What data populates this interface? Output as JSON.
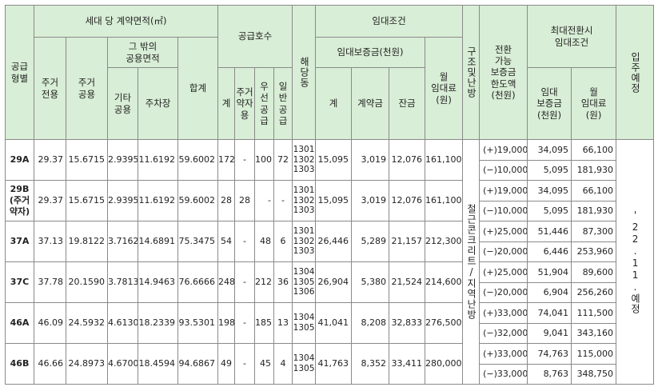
{
  "header": {
    "type": "공급\n형별",
    "area_group": "세대 당 계약면적(㎡)",
    "exclusive": "주거\n전용",
    "residential_common": "주거\n공용",
    "other_common_group": "그 밖의\n공용면적",
    "other_common": "기타\n공용",
    "parking": "주차장",
    "area_total": "합계",
    "supply_group": "공급호수",
    "supply_total": "계",
    "supply_vulnerable": "주거\n약자\n용",
    "supply_priority": "우\n선\n공\n급",
    "supply_general": "일\n반\n공\n급",
    "dong": "해당동",
    "lease_group": "임대조건",
    "deposit_group": "임대보증금(천원)",
    "deposit_total": "계",
    "deposit_contract": "계약금",
    "deposit_balance": "잔금",
    "monthly_rent": "월\n임대료\n(원)",
    "structure": "구조및난방",
    "conversion_limit": "전환\n가능\n보증금\n한도액\n(천원)",
    "max_conversion_group": "최대전환시\n임대조건",
    "max_deposit": "임대\n보증금\n(천원)",
    "max_rent": "월\n임대료\n(원)",
    "move_in": "입주예정"
  },
  "structure_value": "철근콘크리트/지역난방",
  "move_in_value": "'22.11.예정",
  "rows": [
    {
      "type": "29A",
      "exclusive": "29.37",
      "residential_common": "15.6715",
      "other_common": "2.9395",
      "parking": "11.6192",
      "area_total": "59.6002",
      "supply_total": "172",
      "supply_vulnerable": "-",
      "supply_priority": "100",
      "supply_general": "72",
      "dong": "1301\n1302\n1303",
      "deposit_total": "15,095",
      "deposit_contract": "3,019",
      "deposit_balance": "12,076",
      "monthly_rent": "161,100",
      "conv": [
        {
          "limit": "(+)19,000",
          "deposit": "34,095",
          "rent": "66,100"
        },
        {
          "limit": "(−)10,000",
          "deposit": "5,095",
          "rent": "181,930"
        }
      ]
    },
    {
      "type": "29B\n(주거\n약자)",
      "exclusive": "29.37",
      "residential_common": "15.6715",
      "other_common": "2.9395",
      "parking": "11.6192",
      "area_total": "59.6002",
      "supply_total": "28",
      "supply_vulnerable": "28",
      "supply_priority": "-",
      "supply_general": "-",
      "dong": "1301\n1302\n1303",
      "deposit_total": "15,095",
      "deposit_contract": "3,019",
      "deposit_balance": "12,076",
      "monthly_rent": "161,100",
      "conv": [
        {
          "limit": "(+)19,000",
          "deposit": "34,095",
          "rent": "66,100"
        },
        {
          "limit": "(−)10,000",
          "deposit": "5,095",
          "rent": "181,930"
        }
      ]
    },
    {
      "type": "37A",
      "exclusive": "37.13",
      "residential_common": "19.8122",
      "other_common": "3.7162",
      "parking": "14.6891",
      "area_total": "75.3475",
      "supply_total": "54",
      "supply_vulnerable": "-",
      "supply_priority": "48",
      "supply_general": "6",
      "dong": "1301\n1302\n1303",
      "deposit_total": "26,446",
      "deposit_contract": "5,289",
      "deposit_balance": "21,157",
      "monthly_rent": "212,300",
      "conv": [
        {
          "limit": "(+)25,000",
          "deposit": "51,446",
          "rent": "87,300"
        },
        {
          "limit": "(−)20,000",
          "deposit": "6,446",
          "rent": "253,960"
        }
      ]
    },
    {
      "type": "37C",
      "exclusive": "37.78",
      "residential_common": "20.1590",
      "other_common": "3.7813",
      "parking": "14.9463",
      "area_total": "76.6666",
      "supply_total": "248",
      "supply_vulnerable": "-",
      "supply_priority": "212",
      "supply_general": "36",
      "dong": "1304\n1305\n1306",
      "deposit_total": "26,904",
      "deposit_contract": "5,380",
      "deposit_balance": "21,524",
      "monthly_rent": "214,600",
      "conv": [
        {
          "limit": "(+)25,000",
          "deposit": "51,904",
          "rent": "89,600"
        },
        {
          "limit": "(−)20,000",
          "deposit": "6,904",
          "rent": "256,260"
        }
      ]
    },
    {
      "type": "46A",
      "exclusive": "46.09",
      "residential_common": "24.5932",
      "other_common": "4.6130",
      "parking": "18.2339",
      "area_total": "93.5301",
      "supply_total": "198",
      "supply_vulnerable": "-",
      "supply_priority": "185",
      "supply_general": "13",
      "dong": "1304\n1305",
      "deposit_total": "41,041",
      "deposit_contract": "8,208",
      "deposit_balance": "32,833",
      "monthly_rent": "276,500",
      "conv": [
        {
          "limit": "(+)33,000",
          "deposit": "74,041",
          "rent": "111,500"
        },
        {
          "limit": "(−)32,000",
          "deposit": "9,041",
          "rent": "343,160"
        }
      ]
    },
    {
      "type": "46B",
      "exclusive": "46.66",
      "residential_common": "24.8973",
      "other_common": "4.6700",
      "parking": "18.4594",
      "area_total": "94.6867",
      "supply_total": "49",
      "supply_vulnerable": "-",
      "supply_priority": "45",
      "supply_general": "4",
      "dong": "1304\n1305",
      "deposit_total": "41,763",
      "deposit_contract": "8,352",
      "deposit_balance": "33,411",
      "monthly_rent": "280,000",
      "conv": [
        {
          "limit": "(+)33,000",
          "deposit": "74,763",
          "rent": "115,000"
        },
        {
          "limit": "(−)33,000",
          "deposit": "8,763",
          "rent": "348,750"
        }
      ]
    }
  ]
}
